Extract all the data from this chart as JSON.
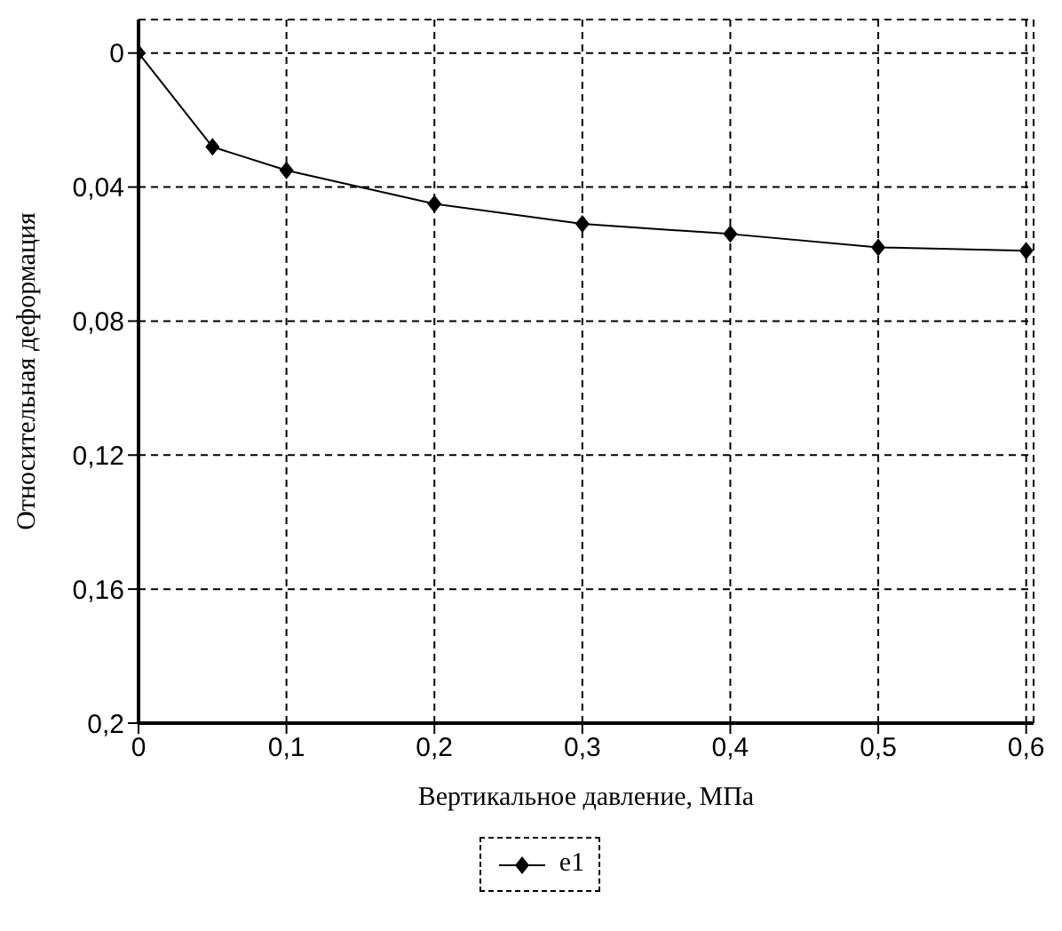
{
  "chart_data": {
    "type": "line",
    "xlabel": "Вертикальное давление, МПа",
    "ylabel": "Относительная деформация",
    "x": [
      0,
      0.05,
      0.1,
      0.2,
      0.3,
      0.4,
      0.5,
      0.6
    ],
    "series": [
      {
        "name": "e1",
        "color": "#000000",
        "values": [
          0,
          0.028,
          0.035,
          0.045,
          0.051,
          0.054,
          0.058,
          0.059
        ]
      }
    ],
    "xlim": [
      0,
      0.605
    ],
    "xticks": [
      0,
      {
        "value": 0.1,
        "label": "0,1"
      },
      {
        "value": 0.2,
        "label": "0,2"
      },
      {
        "value": 0.3,
        "label": "0,3"
      },
      {
        "value": 0.4,
        "label": "0,4"
      },
      {
        "value": 0.5,
        "label": "0,5"
      },
      {
        "value": 0.6,
        "label": "0,6"
      }
    ],
    "ylim": [
      0.2,
      -0.01
    ],
    "yticks": [
      0,
      {
        "value": 0.04,
        "label": "0,04"
      },
      {
        "value": 0.08,
        "label": "0,08"
      },
      {
        "value": 0.12,
        "label": "0,12"
      },
      {
        "value": 0.16,
        "label": "0,16"
      },
      {
        "value": 0.2,
        "label": "0,2"
      }
    ],
    "grid": true,
    "legend": "bottom",
    "marker": "diamond",
    "line_style": "solid"
  }
}
